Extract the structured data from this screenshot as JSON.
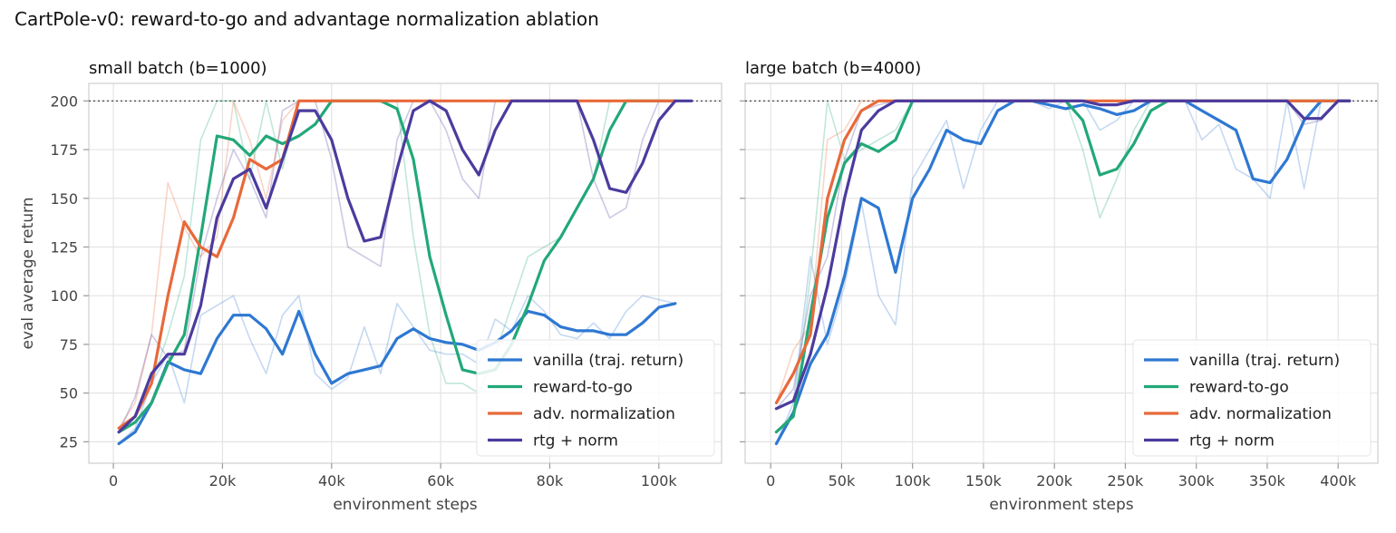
{
  "suptitle": "CartPole-v0: reward-to-go and advantage normalization ablation",
  "colors": {
    "vanilla": "#2e78d2",
    "rtg": "#22a878",
    "norm": "#e8693a",
    "rtgnorm": "#4b3b9e",
    "grid": "#e4e4e4",
    "axis": "#cfcfcf",
    "text": "#444444"
  },
  "chart_data": [
    {
      "type": "line",
      "title": "small batch (b=1000)",
      "xlabel": "environment steps",
      "ylabel": "eval average return",
      "xlim": [
        -4500,
        111500
      ],
      "ylim": [
        14,
        209
      ],
      "xticks": [
        0,
        20000,
        40000,
        60000,
        80000,
        100000
      ],
      "xticklabels": [
        "0",
        "20k",
        "40k",
        "60k",
        "80k",
        "100k"
      ],
      "yticks": [
        25,
        50,
        75,
        100,
        125,
        150,
        175,
        200
      ],
      "grid": true,
      "reference_line": 200,
      "legend": "lower-right",
      "series": [
        {
          "name": "vanilla (traj. return)",
          "key": "vanilla",
          "x": [
            1000,
            4000,
            7000,
            10000,
            13000,
            16000,
            19000,
            22000,
            25000,
            28000,
            31000,
            34000,
            37000,
            40000,
            43000,
            46000,
            49000,
            52000,
            55000,
            58000,
            61000,
            64000,
            67000,
            70000,
            73000,
            76000,
            79000,
            82000,
            85000,
            88000,
            91000,
            94000,
            97000,
            100000,
            103000
          ],
          "smooth": [
            24,
            30,
            45,
            66,
            62,
            60,
            78,
            90,
            90,
            83,
            70,
            92,
            70,
            55,
            60,
            62,
            64,
            78,
            83,
            78,
            76,
            75,
            72,
            76,
            82,
            92,
            90,
            84,
            82,
            82,
            80,
            80,
            86,
            94,
            96
          ],
          "raw": [
            24,
            32,
            55,
            70,
            45,
            90,
            95,
            100,
            78,
            60,
            90,
            100,
            60,
            52,
            58,
            84,
            60,
            96,
            84,
            72,
            70,
            70,
            65,
            88,
            82,
            100,
            92,
            80,
            78,
            86,
            78,
            92,
            100,
            98,
            96
          ]
        },
        {
          "name": "reward-to-go",
          "key": "rtg",
          "x": [
            1000,
            4000,
            7000,
            10000,
            13000,
            16000,
            19000,
            22000,
            25000,
            28000,
            31000,
            34000,
            37000,
            40000,
            43000,
            46000,
            49000,
            52000,
            55000,
            58000,
            61000,
            64000,
            67000,
            70000,
            73000,
            76000,
            79000,
            82000,
            85000,
            88000,
            91000,
            94000,
            97000,
            100000,
            103000
          ],
          "smooth": [
            30,
            35,
            45,
            65,
            80,
            130,
            182,
            180,
            172,
            182,
            178,
            182,
            188,
            200,
            200,
            200,
            200,
            196,
            170,
            120,
            90,
            62,
            60,
            62,
            75,
            95,
            118,
            130,
            145,
            160,
            185,
            200,
            200,
            200,
            200
          ],
          "raw": [
            30,
            38,
            55,
            80,
            110,
            180,
            200,
            200,
            160,
            200,
            165,
            200,
            200,
            200,
            200,
            200,
            200,
            200,
            130,
            80,
            55,
            55,
            50,
            70,
            95,
            120,
            125,
            130,
            145,
            160,
            200,
            200,
            200,
            200,
            200
          ]
        },
        {
          "name": "adv. normalization",
          "key": "norm",
          "x": [
            1000,
            4000,
            7000,
            10000,
            13000,
            16000,
            19000,
            22000,
            25000,
            28000,
            31000,
            34000,
            37000,
            40000,
            43000,
            46000,
            49000,
            52000,
            55000,
            58000,
            61000,
            64000,
            67000,
            70000,
            73000,
            76000,
            79000,
            82000,
            85000,
            88000,
            91000,
            94000,
            97000,
            100000,
            103000
          ],
          "smooth": [
            32,
            38,
            55,
            100,
            138,
            125,
            120,
            140,
            170,
            165,
            170,
            200,
            200,
            200,
            200,
            200,
            200,
            200,
            200,
            200,
            200,
            200,
            200,
            200,
            200,
            200,
            200,
            200,
            200,
            200,
            200,
            200,
            200,
            200,
            200
          ],
          "raw": [
            32,
            45,
            80,
            158,
            135,
            120,
            130,
            200,
            180,
            150,
            190,
            200,
            200,
            200,
            200,
            200,
            200,
            200,
            200,
            200,
            200,
            200,
            200,
            200,
            200,
            200,
            200,
            200,
            200,
            200,
            200,
            200,
            200,
            200,
            200
          ]
        },
        {
          "name": "rtg + norm",
          "key": "rtgnorm",
          "x": [
            1000,
            4000,
            7000,
            10000,
            13000,
            16000,
            19000,
            22000,
            25000,
            28000,
            31000,
            34000,
            37000,
            40000,
            43000,
            46000,
            49000,
            52000,
            55000,
            58000,
            61000,
            64000,
            67000,
            70000,
            73000,
            76000,
            79000,
            82000,
            85000,
            88000,
            91000,
            94000,
            97000,
            100000,
            103000,
            106000
          ],
          "smooth": [
            30,
            38,
            60,
            70,
            70,
            95,
            140,
            160,
            165,
            145,
            170,
            195,
            195,
            180,
            150,
            128,
            130,
            165,
            195,
            200,
            195,
            175,
            162,
            185,
            200,
            200,
            200,
            200,
            200,
            180,
            155,
            153,
            168,
            190,
            200,
            200
          ],
          "raw": [
            30,
            48,
            80,
            68,
            72,
            120,
            150,
            175,
            160,
            140,
            195,
            200,
            200,
            170,
            125,
            120,
            115,
            180,
            200,
            200,
            185,
            160,
            150,
            200,
            200,
            200,
            200,
            200,
            200,
            160,
            140,
            145,
            180,
            200,
            200,
            200
          ]
        }
      ]
    },
    {
      "type": "line",
      "title": "large batch (b=4000)",
      "xlabel": "environment steps",
      "ylabel": "",
      "xlim": [
        -18000,
        428000
      ],
      "ylim": [
        14,
        209
      ],
      "xticks": [
        0,
        50000,
        100000,
        150000,
        200000,
        250000,
        300000,
        350000,
        400000
      ],
      "xticklabels": [
        "0",
        "50k",
        "100k",
        "150k",
        "200k",
        "250k",
        "300k",
        "350k",
        "400k"
      ],
      "yticks": [
        25,
        50,
        75,
        100,
        125,
        150,
        175,
        200
      ],
      "grid": true,
      "reference_line": 200,
      "legend": "lower-right",
      "series": [
        {
          "name": "vanilla (traj. return)",
          "key": "vanilla",
          "x": [
            4000,
            16000,
            28000,
            40000,
            52000,
            64000,
            76000,
            88000,
            100000,
            112000,
            124000,
            136000,
            148000,
            160000,
            172000,
            184000,
            196000,
            208000,
            220000,
            232000,
            244000,
            256000,
            268000,
            280000,
            292000,
            304000,
            316000,
            328000,
            340000,
            352000,
            364000,
            376000,
            388000,
            400000,
            408000
          ],
          "smooth": [
            24,
            40,
            65,
            80,
            110,
            150,
            145,
            112,
            150,
            165,
            185,
            180,
            178,
            195,
            200,
            200,
            198,
            196,
            198,
            196,
            193,
            195,
            200,
            200,
            200,
            195,
            190,
            185,
            160,
            158,
            170,
            190,
            200,
            200,
            200
          ],
          "raw": [
            24,
            45,
            120,
            75,
            105,
            148,
            100,
            85,
            160,
            175,
            190,
            155,
            185,
            200,
            200,
            200,
            196,
            200,
            200,
            185,
            190,
            200,
            200,
            200,
            200,
            180,
            188,
            165,
            160,
            150,
            200,
            155,
            200,
            200,
            200
          ]
        },
        {
          "name": "reward-to-go",
          "key": "rtg",
          "x": [
            4000,
            16000,
            28000,
            40000,
            52000,
            64000,
            76000,
            88000,
            100000,
            112000,
            124000,
            136000,
            148000,
            160000,
            172000,
            184000,
            196000,
            208000,
            220000,
            232000,
            244000,
            256000,
            268000,
            280000,
            292000,
            304000,
            316000,
            328000,
            340000,
            352000,
            364000,
            376000,
            388000,
            400000,
            408000
          ],
          "smooth": [
            30,
            38,
            90,
            140,
            168,
            178,
            174,
            180,
            200,
            200,
            200,
            200,
            200,
            200,
            200,
            200,
            200,
            200,
            190,
            162,
            165,
            178,
            195,
            200,
            200,
            200,
            200,
            200,
            200,
            200,
            200,
            200,
            200,
            200,
            200
          ],
          "raw": [
            30,
            40,
            110,
            200,
            170,
            175,
            180,
            185,
            200,
            200,
            200,
            200,
            200,
            200,
            200,
            200,
            200,
            200,
            175,
            140,
            160,
            185,
            200,
            200,
            200,
            200,
            200,
            200,
            200,
            200,
            200,
            200,
            200,
            200,
            200
          ]
        },
        {
          "name": "adv. normalization",
          "key": "norm",
          "x": [
            4000,
            16000,
            28000,
            40000,
            52000,
            64000,
            76000,
            88000,
            100000,
            112000,
            124000,
            136000,
            148000,
            160000,
            172000,
            184000,
            196000,
            208000,
            220000,
            232000,
            244000,
            256000,
            268000,
            280000,
            292000,
            304000,
            316000,
            328000,
            340000,
            352000,
            364000,
            376000,
            388000,
            400000,
            408000
          ],
          "smooth": [
            45,
            60,
            80,
            150,
            180,
            195,
            200,
            200,
            200,
            200,
            200,
            200,
            200,
            200,
            200,
            200,
            200,
            200,
            200,
            200,
            200,
            200,
            200,
            200,
            200,
            200,
            200,
            200,
            200,
            200,
            200,
            200,
            200,
            200,
            200
          ],
          "raw": [
            45,
            72,
            85,
            180,
            185,
            200,
            200,
            200,
            200,
            200,
            200,
            200,
            200,
            200,
            200,
            200,
            200,
            200,
            200,
            200,
            200,
            200,
            200,
            200,
            200,
            200,
            200,
            200,
            200,
            200,
            200,
            200,
            200,
            200,
            200
          ]
        },
        {
          "name": "rtg + norm",
          "key": "rtgnorm",
          "x": [
            4000,
            16000,
            28000,
            40000,
            52000,
            64000,
            76000,
            88000,
            100000,
            112000,
            124000,
            136000,
            148000,
            160000,
            172000,
            184000,
            196000,
            208000,
            220000,
            232000,
            244000,
            256000,
            268000,
            280000,
            292000,
            304000,
            316000,
            328000,
            340000,
            352000,
            364000,
            376000,
            388000,
            400000,
            408000
          ],
          "smooth": [
            42,
            46,
            70,
            105,
            150,
            185,
            195,
            200,
            200,
            200,
            200,
            200,
            200,
            200,
            200,
            200,
            200,
            200,
            200,
            198,
            198,
            200,
            200,
            200,
            200,
            200,
            200,
            200,
            200,
            200,
            200,
            191,
            191,
            200,
            200
          ],
          "raw": [
            42,
            52,
            100,
            120,
            170,
            195,
            198,
            200,
            200,
            200,
            200,
            200,
            200,
            200,
            200,
            200,
            200,
            200,
            200,
            198,
            198,
            200,
            200,
            200,
            200,
            200,
            200,
            200,
            200,
            200,
            200,
            188,
            190,
            200,
            200
          ]
        }
      ]
    }
  ]
}
